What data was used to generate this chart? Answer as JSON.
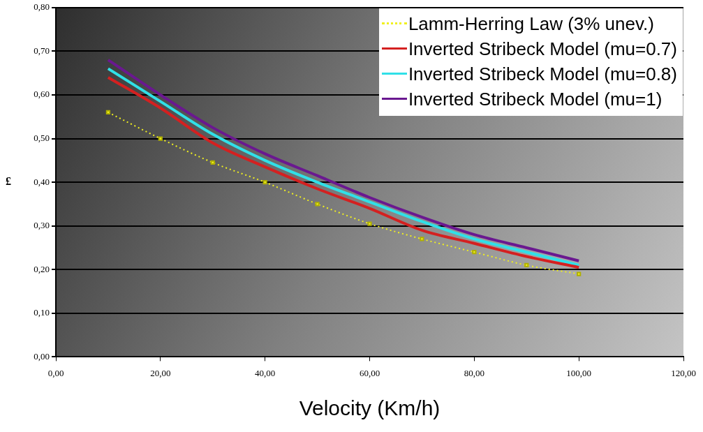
{
  "chart_data": {
    "type": "line",
    "xlabel": "Velocity (Km/h)",
    "ylabel": "£",
    "x": [
      10,
      20,
      30,
      40,
      50,
      60,
      70,
      80,
      90,
      100
    ],
    "series": [
      {
        "name": "Lamm-Herring Law (3% unev.)",
        "color": "#f0f020",
        "line_style": "dotted",
        "marker": "square",
        "values": [
          0.56,
          0.5,
          0.445,
          0.4,
          0.35,
          0.305,
          0.27,
          0.24,
          0.21,
          0.19
        ]
      },
      {
        "name": "Inverted Stribeck Model (mu=0.7)",
        "color": "#d42020",
        "values": [
          0.64,
          0.57,
          0.49,
          0.435,
          0.385,
          0.34,
          0.29,
          0.26,
          0.23,
          0.205
        ]
      },
      {
        "name": "Inverted Stribeck Model (mu=0.8)",
        "color": "#30e0e8",
        "values": [
          0.66,
          0.585,
          0.51,
          0.45,
          0.4,
          0.355,
          0.31,
          0.27,
          0.24,
          0.21
        ]
      },
      {
        "name": "Inverted Stribeck Model (mu=1)",
        "color": "#6a1890",
        "values": [
          0.68,
          0.6,
          0.525,
          0.465,
          0.415,
          0.365,
          0.32,
          0.28,
          0.25,
          0.22
        ]
      }
    ],
    "xlim": [
      0,
      120
    ],
    "xticks": [
      {
        "value": 0,
        "label": "0,00"
      },
      {
        "value": 20,
        "label": "20,00"
      },
      {
        "value": 40,
        "label": "40,00"
      },
      {
        "value": 60,
        "label": "60,00"
      },
      {
        "value": 80,
        "label": "80,00"
      },
      {
        "value": 100,
        "label": "100,00"
      },
      {
        "value": 120,
        "label": "120,00"
      }
    ],
    "ylim": [
      0,
      0.8
    ],
    "yticks": [
      {
        "value": 0,
        "label": "0,00"
      },
      {
        "value": 0.1,
        "label": "0,10"
      },
      {
        "value": 0.2,
        "label": "0,20"
      },
      {
        "value": 0.3,
        "label": "0,30"
      },
      {
        "value": 0.4,
        "label": "0,40"
      },
      {
        "value": 0.5,
        "label": "0,50"
      },
      {
        "value": 0.6,
        "label": "0,60"
      },
      {
        "value": 0.7,
        "label": "0,70"
      },
      {
        "value": 0.8,
        "label": "0,80"
      }
    ],
    "grid": "y",
    "legend": "top right",
    "marker": "none",
    "line_style": "solid"
  }
}
